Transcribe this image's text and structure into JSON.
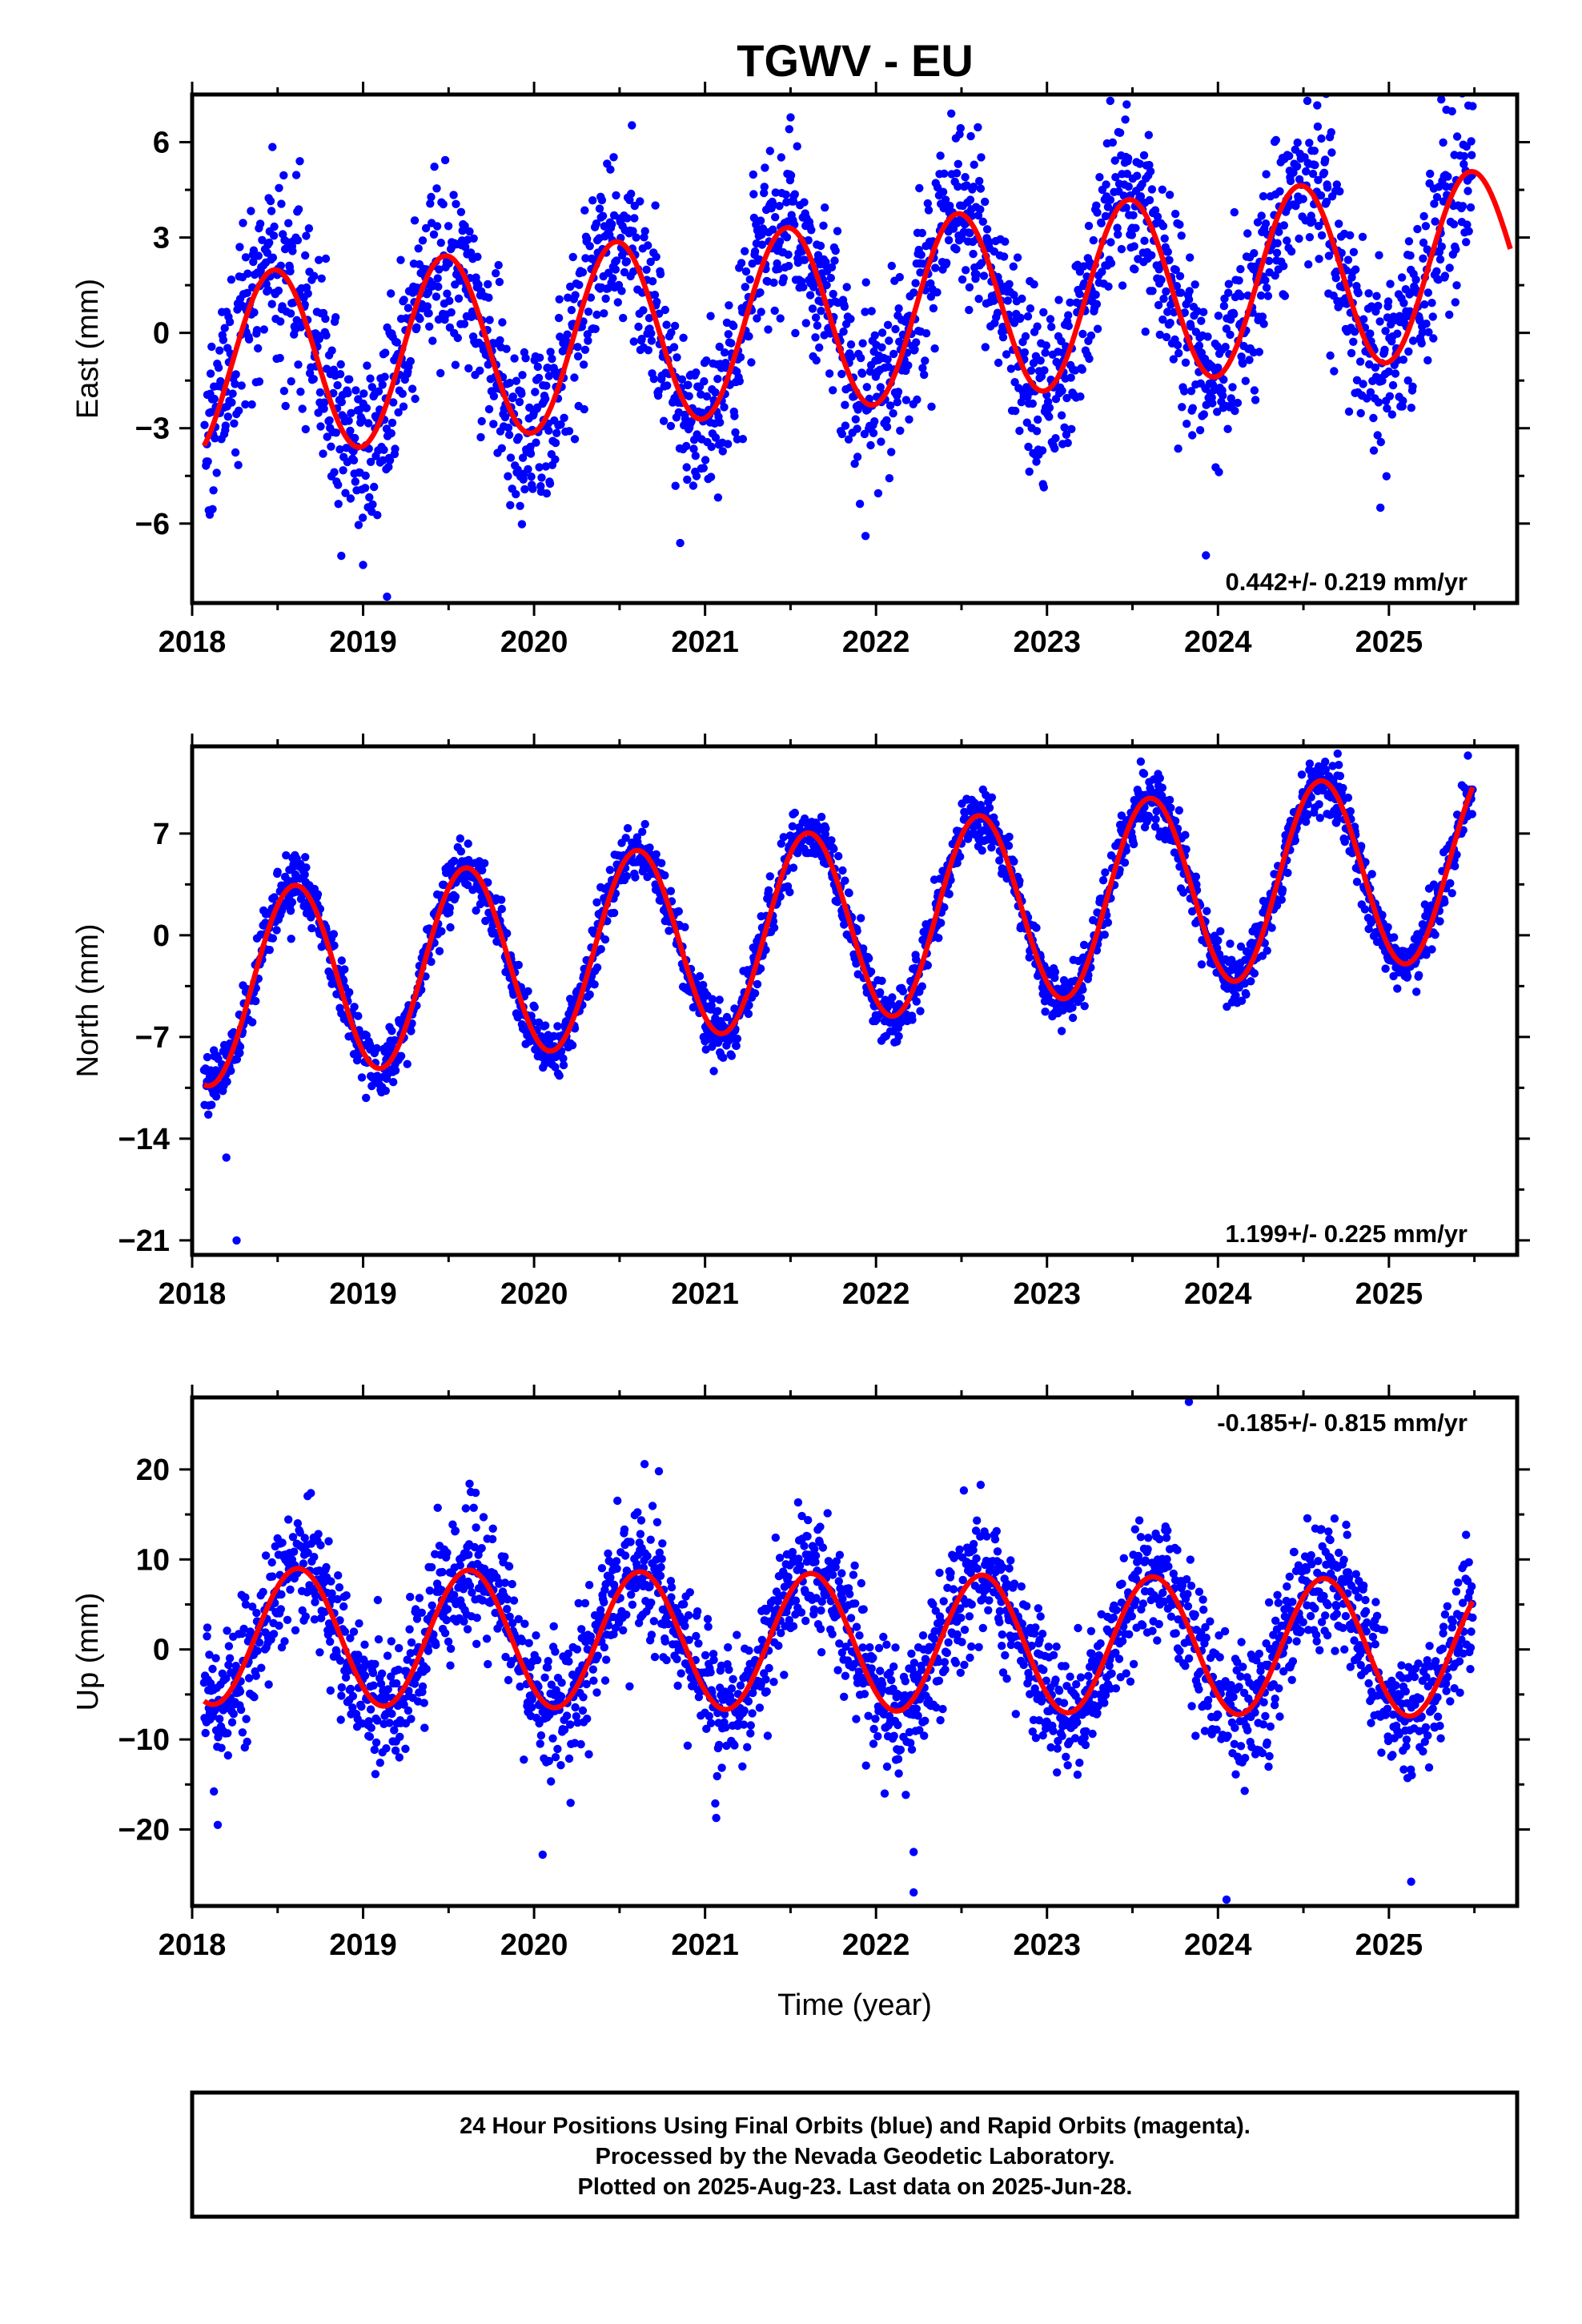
{
  "title": "TGWV - EU",
  "colors": {
    "points": "#0000ff",
    "fit": "#ff0000",
    "frame": "#000000"
  },
  "chart_data": [
    {
      "type": "scatter",
      "ylabel": "East (mm)",
      "xlabel": "",
      "xlim": [
        2018.0,
        2025.75
      ],
      "ylim": [
        -8.5,
        7.5
      ],
      "xticks": [
        "2018",
        "2019",
        "2020",
        "2021",
        "2022",
        "2023",
        "2024",
        "2025"
      ],
      "yticks": [
        {
          "v": 6,
          "label": "6"
        },
        {
          "v": 3,
          "label": "3"
        },
        {
          "v": 0,
          "label": "0"
        },
        {
          "v": -3,
          "label": "−3"
        },
        {
          "v": -6,
          "label": "−6"
        }
      ],
      "rate_label": "0.442+/- 0.219 mm/yr",
      "rate_position": "bottom-right",
      "data_range": [
        2018.07,
        2025.49
      ],
      "fit_range": [
        2018.07,
        2025.71
      ],
      "model": {
        "t0": 2018.07,
        "offset": -1.1,
        "trend": 0.442,
        "amplitude": 2.9,
        "phase_peak": 0.48
      },
      "scatter_sd": 1.4,
      "outliers": [
        [
          2018.63,
          5.4
        ],
        [
          2019.0,
          -7.3
        ],
        [
          2019.14,
          -8.3
        ],
        [
          2022.44,
          6.9
        ],
        [
          2023.37,
          7.3
        ],
        [
          2023.93,
          -7.0
        ],
        [
          2024.95,
          -5.5
        ]
      ]
    },
    {
      "type": "scatter",
      "ylabel": "North (mm)",
      "xlabel": "",
      "xlim": [
        2018.0,
        2025.75
      ],
      "ylim": [
        -22,
        13
      ],
      "xticks": [
        "2018",
        "2019",
        "2020",
        "2021",
        "2022",
        "2023",
        "2024",
        "2025"
      ],
      "yticks": [
        {
          "v": 7,
          "label": "7"
        },
        {
          "v": 0,
          "label": "0"
        },
        {
          "v": -7,
          "label": "−7"
        },
        {
          "v": -14,
          "label": "−14"
        },
        {
          "v": -21,
          "label": "−21"
        }
      ],
      "rate_label": "1.199+/- 0.225 mm/yr",
      "rate_position": "bottom-right",
      "data_range": [
        2018.07,
        2025.49
      ],
      "fit_range": [
        2018.07,
        2025.49
      ],
      "model": {
        "t0": 2018.07,
        "offset": -3.8,
        "trend": 1.199,
        "amplitude": 6.6,
        "phase_peak": 0.6
      },
      "scatter_sd": 1.0,
      "outliers": [
        [
          2018.08,
          -9.2
        ],
        [
          2018.2,
          -15.3
        ],
        [
          2018.26,
          -21.0
        ],
        [
          2024.7,
          12.5
        ]
      ]
    },
    {
      "type": "scatter",
      "ylabel": "Up (mm)",
      "xlabel": "Time (year)",
      "xlim": [
        2018.0,
        2025.75
      ],
      "ylim": [
        -28.5,
        28
      ],
      "xticks": [
        "2018",
        "2019",
        "2020",
        "2021",
        "2022",
        "2023",
        "2024",
        "2025"
      ],
      "yticks": [
        {
          "v": 20,
          "label": "20"
        },
        {
          "v": 10,
          "label": "10"
        },
        {
          "v": 0,
          "label": "0"
        },
        {
          "v": -10,
          "label": "−10"
        },
        {
          "v": -20,
          "label": "−20"
        }
      ],
      "rate_label": "-0.185+/- 0.815 mm/yr",
      "rate_position": "top-right",
      "data_range": [
        2018.07,
        2025.49
      ],
      "fit_range": [
        2018.07,
        2025.49
      ],
      "model": {
        "t0": 2018.07,
        "offset": 1.5,
        "trend": -0.185,
        "amplitude": 7.6,
        "phase_peak": 0.62
      },
      "scatter_sd": 3.6,
      "outliers": [
        [
          2018.15,
          -19.5
        ],
        [
          2019.63,
          17.5
        ],
        [
          2020.05,
          -22.8
        ],
        [
          2020.73,
          19.8
        ],
        [
          2022.22,
          -22.5
        ],
        [
          2022.22,
          -27.0
        ],
        [
          2023.83,
          27.5
        ],
        [
          2024.05,
          -27.8
        ],
        [
          2025.13,
          -25.8
        ]
      ]
    }
  ],
  "footer": {
    "line1": "24 Hour Positions Using Final Orbits (blue) and Rapid Orbits (magenta).",
    "line2": "Processed by the Nevada Geodetic Laboratory.",
    "line3": "Plotted on 2025-Aug-23. Last data on 2025-Jun-28."
  }
}
